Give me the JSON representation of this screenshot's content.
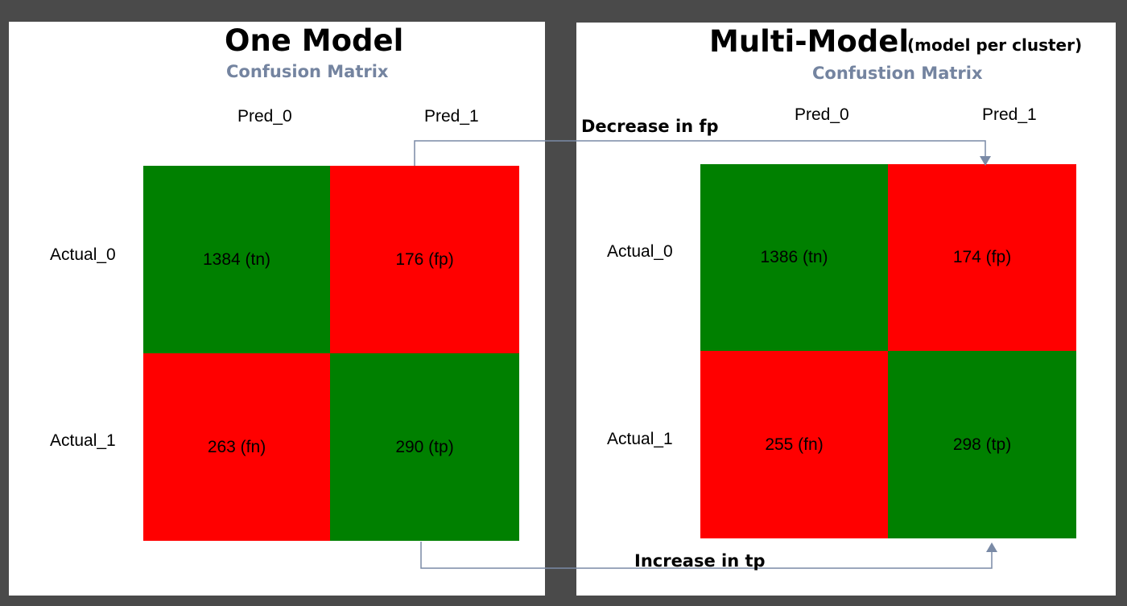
{
  "colors": {
    "background": "#4a4a4a",
    "panel": "#ffffff",
    "green": "#008000",
    "red": "#ff0000",
    "subtitle": "#7484a0",
    "arrow": "#7a8aa6"
  },
  "left": {
    "title": "One Model",
    "subtitle": "Confusion Matrix",
    "col_labels": [
      "Pred_0",
      "Pred_1"
    ],
    "row_labels": [
      "Actual_0",
      "Actual_1"
    ],
    "cells": [
      "1384 (tn)",
      "176 (fp)",
      "263 (fn)",
      "290 (tp)"
    ]
  },
  "right": {
    "title": "Multi-Model",
    "title_note": "(model per cluster)",
    "subtitle": "Confustion Matrix",
    "col_labels": [
      "Pred_0",
      "Pred_1"
    ],
    "row_labels": [
      "Actual_0",
      "Actual_1"
    ],
    "cells": [
      "1386 (tn)",
      "174 (fp)",
      "255 (fn)",
      "298 (tp)"
    ]
  },
  "annotations": {
    "decrease": "Decrease in fp",
    "increase": "Increase in tp"
  }
}
